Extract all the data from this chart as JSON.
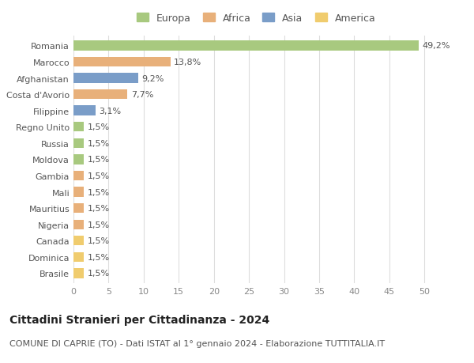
{
  "countries": [
    "Romania",
    "Marocco",
    "Afghanistan",
    "Costa d'Avorio",
    "Filippine",
    "Regno Unito",
    "Russia",
    "Moldova",
    "Gambia",
    "Mali",
    "Mauritius",
    "Nigeria",
    "Canada",
    "Dominica",
    "Brasile"
  ],
  "values": [
    49.2,
    13.8,
    9.2,
    7.7,
    3.1,
    1.5,
    1.5,
    1.5,
    1.5,
    1.5,
    1.5,
    1.5,
    1.5,
    1.5,
    1.5
  ],
  "labels": [
    "49,2%",
    "13,8%",
    "9,2%",
    "7,7%",
    "3,1%",
    "1,5%",
    "1,5%",
    "1,5%",
    "1,5%",
    "1,5%",
    "1,5%",
    "1,5%",
    "1,5%",
    "1,5%",
    "1,5%"
  ],
  "continent": [
    "Europa",
    "Africa",
    "Asia",
    "Africa",
    "Asia",
    "Europa",
    "Europa",
    "Europa",
    "Africa",
    "Africa",
    "Africa",
    "Africa",
    "America",
    "America",
    "America"
  ],
  "colors": {
    "Europa": "#a8c97f",
    "Africa": "#e8b07a",
    "Asia": "#7a9dc8",
    "America": "#f0cc6e"
  },
  "legend_order": [
    "Europa",
    "Africa",
    "Asia",
    "America"
  ],
  "title": "Cittadini Stranieri per Cittadinanza - 2024",
  "subtitle": "COMUNE DI CAPRIE (TO) - Dati ISTAT al 1° gennaio 2024 - Elaborazione TUTTITALIA.IT",
  "xlim": [
    0,
    52
  ],
  "xticks": [
    0,
    5,
    10,
    15,
    20,
    25,
    30,
    35,
    40,
    45,
    50
  ],
  "background_color": "#ffffff",
  "grid_color": "#dddddd",
  "bar_height": 0.6,
  "title_fontsize": 10,
  "subtitle_fontsize": 8,
  "label_fontsize": 8,
  "tick_fontsize": 8,
  "legend_fontsize": 9
}
